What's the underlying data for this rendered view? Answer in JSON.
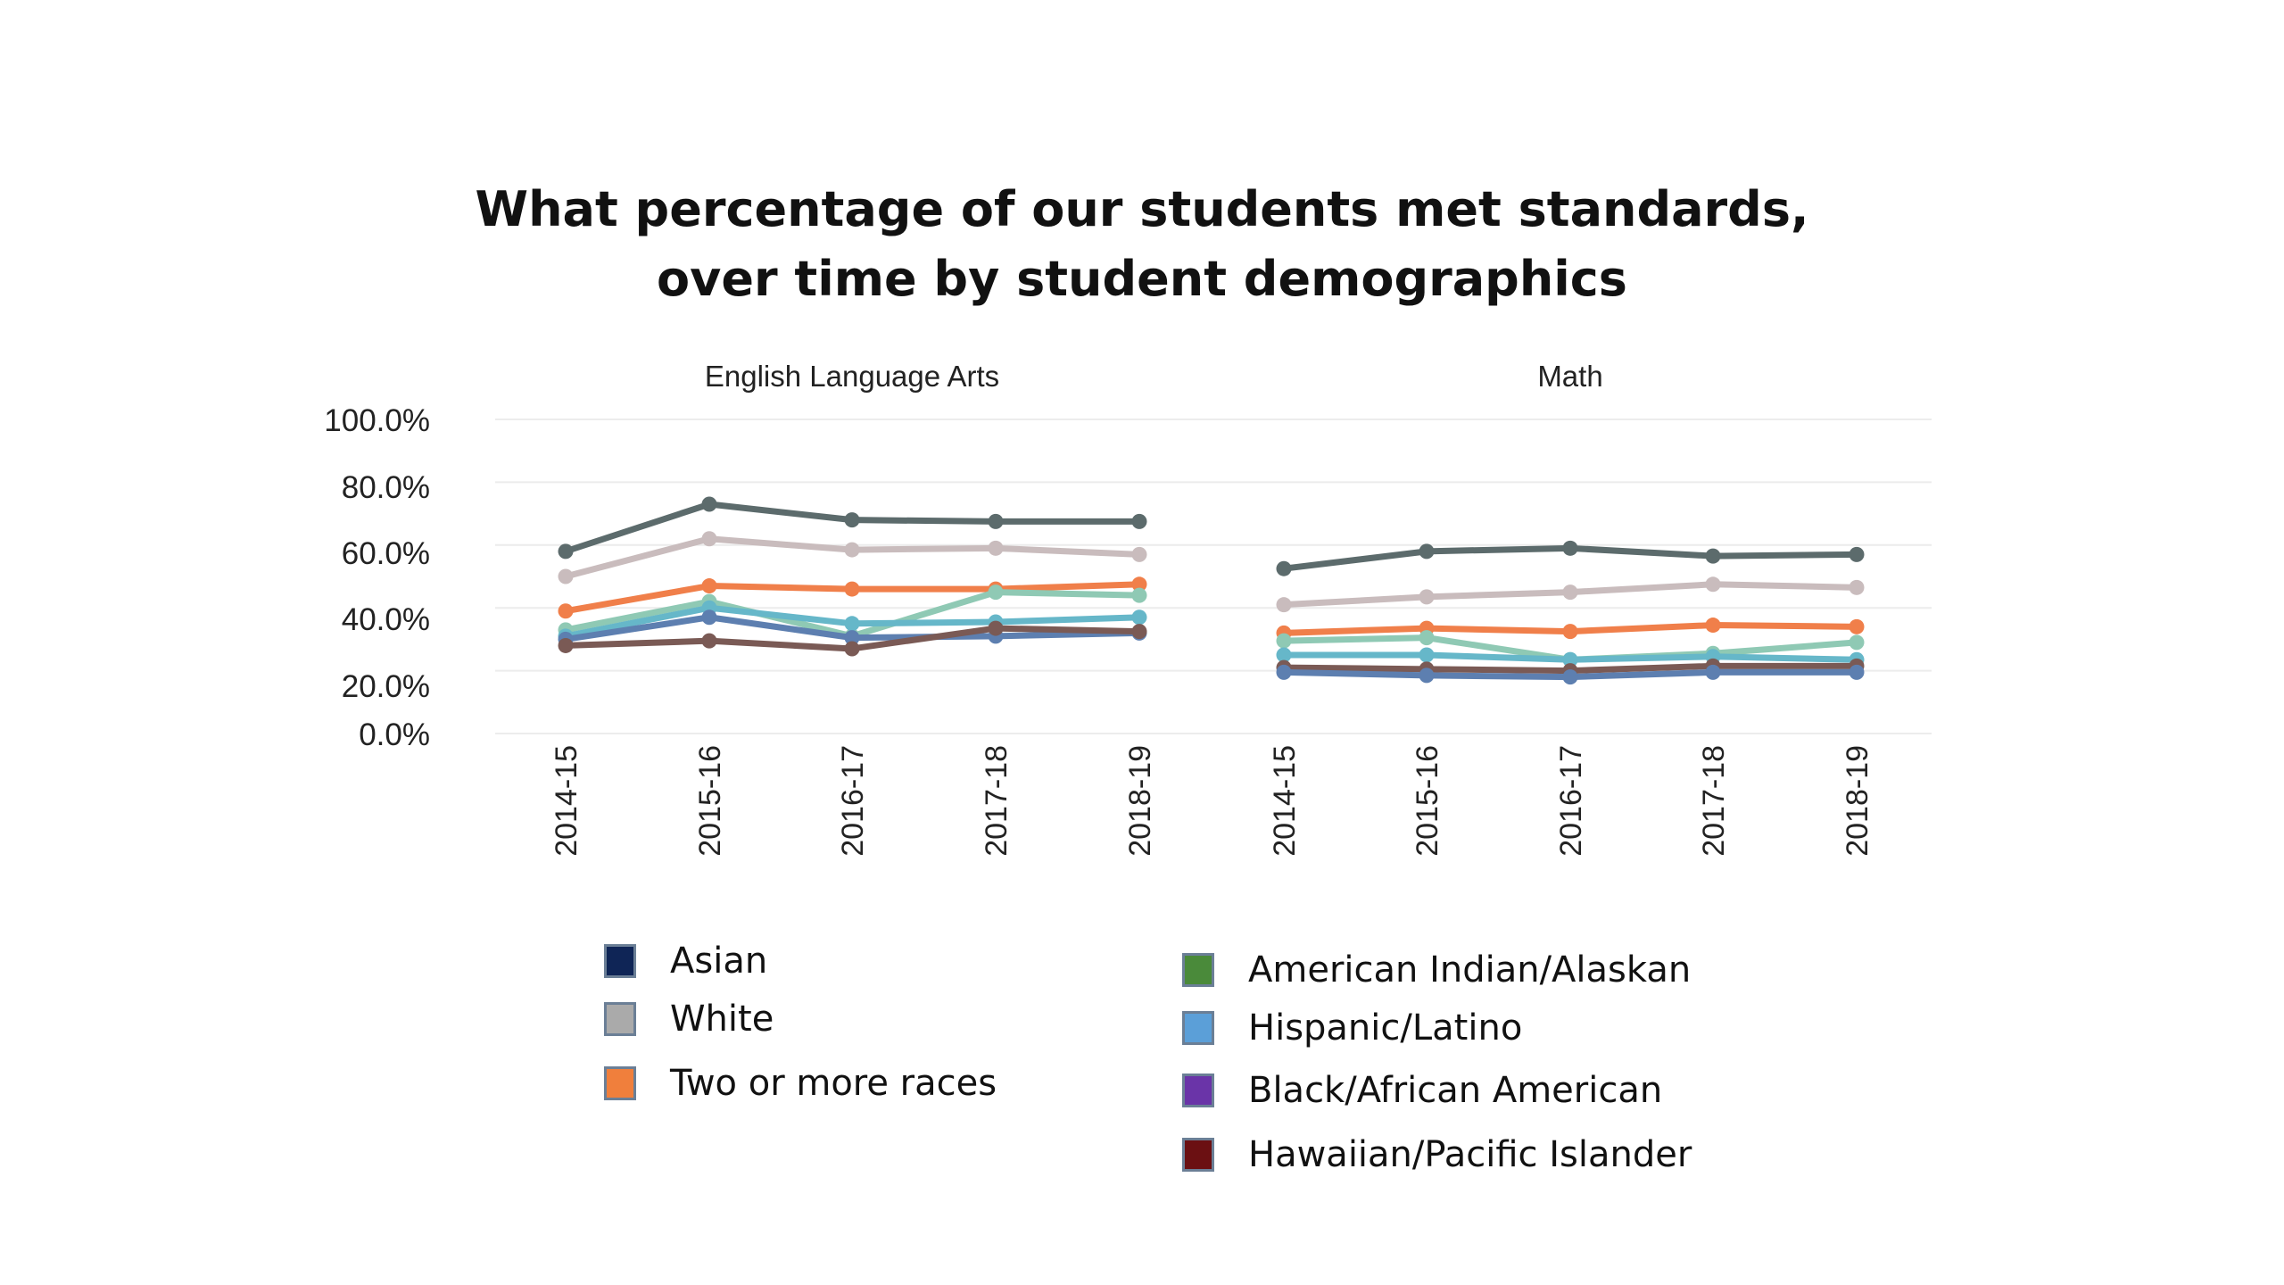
{
  "title": {
    "line1": "What percentage of our students met standards,",
    "line2": "over time by student demographics"
  },
  "chart_data": {
    "type": "line",
    "y_ticks": [
      "100.0%",
      "80.0%",
      "60.0%",
      "40.0%",
      "20.0%",
      "0.0%"
    ],
    "ylim": [
      0,
      100
    ],
    "grid": true,
    "categories": [
      "2014-15",
      "2015-16",
      "2016-17",
      "2017-18",
      "2018-19"
    ],
    "panels": [
      {
        "title": "English Language Arts",
        "series": [
          {
            "color": "#5c6b6c",
            "values": [
              58,
              73,
              68,
              67.5,
              67.5
            ]
          },
          {
            "color": "#c9bcbd",
            "values": [
              50,
              62,
              58.5,
              59,
              57
            ]
          },
          {
            "color": "#f07f4a",
            "values": [
              39,
              47,
              46,
              46,
              47.5
            ]
          },
          {
            "color": "#8fc9b4",
            "values": [
              33,
              42,
              31,
              45,
              44
            ]
          },
          {
            "color": "#66b7c9",
            "values": [
              31,
              40,
              35,
              35.5,
              37
            ]
          },
          {
            "color": "#5d7fb0",
            "values": [
              30,
              37,
              30.5,
              31,
              32
            ]
          },
          {
            "color": "#7a5a55",
            "values": [
              28,
              29.5,
              27,
              33.5,
              32.5
            ]
          }
        ]
      },
      {
        "title": "Math",
        "series": [
          {
            "color": "#5c6b6c",
            "values": [
              52.5,
              58,
              59,
              56.5,
              57
            ]
          },
          {
            "color": "#c9bcbd",
            "values": [
              41,
              43.5,
              45,
              47.5,
              46.5
            ]
          },
          {
            "color": "#f07f4a",
            "values": [
              32,
              33.5,
              32.5,
              34.5,
              34
            ]
          },
          {
            "color": "#8fc9b4",
            "values": [
              29.5,
              30.5,
              23.5,
              25.5,
              29
            ]
          },
          {
            "color": "#66b7c9",
            "values": [
              25,
              25,
              23.5,
              24.5,
              23.5
            ]
          },
          {
            "color": "#7a5a55",
            "values": [
              21,
              20.5,
              20,
              21.5,
              21.5
            ]
          },
          {
            "color": "#5d7fb0",
            "values": [
              19.5,
              18.5,
              18,
              19.5,
              19.5
            ]
          }
        ]
      }
    ],
    "legend": [
      {
        "label": "Asian",
        "color": "#0f2556"
      },
      {
        "label": "White",
        "color": "#aaaaaa"
      },
      {
        "label": "Two or more races",
        "color": "#f07f3c"
      },
      {
        "label": "American Indian/Alaskan",
        "color": "#4a8a3a"
      },
      {
        "label": "Hispanic/Latino",
        "color": "#5b9fd8"
      },
      {
        "label": "Black/African American",
        "color": "#6a34a8"
      },
      {
        "label": "Hawaiian/Pacific Islander",
        "color": "#6b1012"
      }
    ]
  }
}
